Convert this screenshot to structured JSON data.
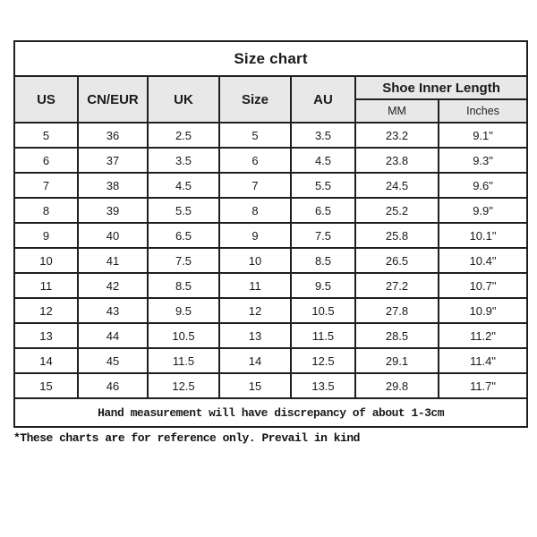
{
  "chart_data": {
    "type": "table",
    "title": "Size chart",
    "columns": [
      "US",
      "CN/EUR",
      "UK",
      "Size",
      "AU",
      "MM",
      "Inches"
    ],
    "column_group": {
      "label": "Shoe Inner Length",
      "spans": [
        "MM",
        "Inches"
      ]
    },
    "rows": [
      [
        "5",
        "36",
        "2.5",
        "5",
        "3.5",
        "23.2",
        "9.1\""
      ],
      [
        "6",
        "37",
        "3.5",
        "6",
        "4.5",
        "23.8",
        "9.3\""
      ],
      [
        "7",
        "38",
        "4.5",
        "7",
        "5.5",
        "24.5",
        "9.6\""
      ],
      [
        "8",
        "39",
        "5.5",
        "8",
        "6.5",
        "25.2",
        "9.9\""
      ],
      [
        "9",
        "40",
        "6.5",
        "9",
        "7.5",
        "25.8",
        "10.1\""
      ],
      [
        "10",
        "41",
        "7.5",
        "10",
        "8.5",
        "26.5",
        "10.4\""
      ],
      [
        "11",
        "42",
        "8.5",
        "11",
        "9.5",
        "27.2",
        "10.7\""
      ],
      [
        "12",
        "43",
        "9.5",
        "12",
        "10.5",
        "27.8",
        "10.9\""
      ],
      [
        "13",
        "44",
        "10.5",
        "13",
        "11.5",
        "28.5",
        "11.2\""
      ],
      [
        "14",
        "45",
        "11.5",
        "14",
        "12.5",
        "29.1",
        "11.4\""
      ],
      [
        "15",
        "46",
        "12.5",
        "15",
        "13.5",
        "29.8",
        "11.7\""
      ]
    ],
    "footer": "Hand measurement will have discrepancy of about 1-3cm"
  },
  "note": "*These charts are for reference only. Prevail in kind",
  "colors": {
    "header_bg": "#e8e8e8",
    "border": "#1f1f1f",
    "background": "#ffffff"
  }
}
